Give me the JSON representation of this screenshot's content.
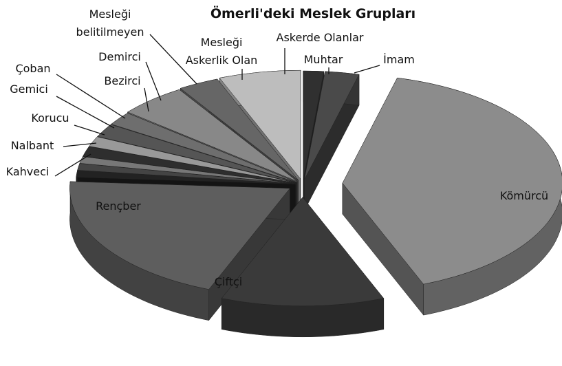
{
  "chart_data": {
    "type": "pie3d",
    "title": "Ömerli'deki Meslek Grupları",
    "categories": [
      "Muhtar",
      "İmam",
      "Kömürcü",
      "Çiftçi",
      "Rençber",
      "Kahveci",
      "Nalbant",
      "Korucu",
      "Gemici",
      "Çoban",
      "Bezirci",
      "Demirci",
      "Mesleği belitilmeyen",
      "Mesleği Askerlik Olan",
      "Askerde Olanlar"
    ],
    "values": [
      1.5,
      2.5,
      40,
      12,
      20,
      1,
      1,
      1,
      1.5,
      1.5,
      2,
      2,
      5,
      3,
      6
    ],
    "colors": [
      "#303030",
      "#4a4a4a",
      "#8c8c8c",
      "#3a3a3a",
      "#5e5e5e",
      "#222222",
      "#444444",
      "#777777",
      "#2e2e2e",
      "#999999",
      "#555555",
      "#6e6e6e",
      "#888888",
      "#666666",
      "#bdbdbd"
    ]
  }
}
